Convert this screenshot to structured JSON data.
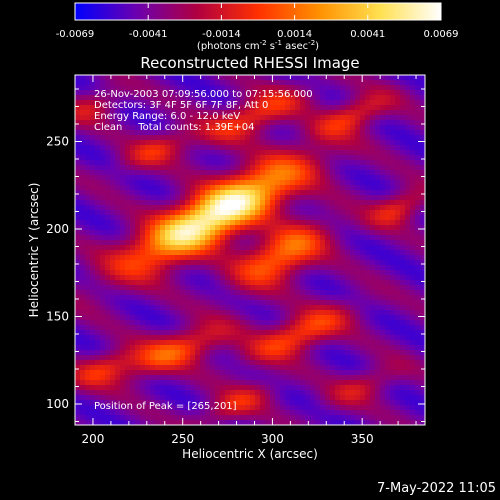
{
  "chart_data": {
    "type": "heatmap",
    "title": "Reconstructed RHESSI Image",
    "xlabel": "Heliocentric X (arcsec)",
    "ylabel": "Heliocentric Y (arcsec)",
    "xlim": [
      190,
      385
    ],
    "ylim": [
      88,
      288
    ],
    "xticks": [
      200,
      250,
      300,
      350
    ],
    "yticks": [
      100,
      150,
      200,
      250
    ],
    "colorbar": {
      "min": -0.0069,
      "max": 0.0069,
      "tick_labels": [
        "-0.0069",
        "-0.0041",
        "-0.0014",
        "0.0014",
        "0.0041",
        "0.0069"
      ],
      "unit_parts": [
        "(photons cm",
        "-2",
        " s",
        "-1",
        " asec",
        "-2",
        ")"
      ],
      "colormap": [
        "#0000ff",
        "#6a00b0",
        "#b00040",
        "#ff3000",
        "#ff9000",
        "#ffe050",
        "#ffffff"
      ]
    },
    "annotations": [
      "26-Nov-2003 07:09:56.000 to 07:15:56.000",
      "Detectors: 3F 4F 5F 6F 7F 8F, Att 0",
      "Energy Range: 6.0 - 12.0 keV",
      "Clean     Total counts: 1.39E+04"
    ],
    "peak_label": "Position of Peak = [265,201]",
    "peak": [
      265,
      201
    ],
    "footer_date": "7-May-2022 11:05",
    "sources": [
      {
        "x": 268,
        "y": 208,
        "sx": 38,
        "sy": 10,
        "angle": -30,
        "amp": 1.0
      },
      {
        "x": 305,
        "y": 185,
        "sx": 20,
        "sy": 9,
        "angle": -30,
        "amp": 0.55
      },
      {
        "x": 245,
        "y": 130,
        "sx": 22,
        "sy": 7,
        "angle": -22,
        "amp": 0.45
      },
      {
        "x": 315,
        "y": 140,
        "sx": 22,
        "sy": 7,
        "angle": -25,
        "amp": 0.45
      },
      {
        "x": 290,
        "y": 265,
        "sx": 22,
        "sy": 7,
        "angle": -25,
        "amp": 0.4
      },
      {
        "x": 345,
        "y": 265,
        "sx": 16,
        "sy": 6,
        "angle": -25,
        "amp": 0.35
      },
      {
        "x": 235,
        "y": 245,
        "sx": 16,
        "sy": 6,
        "angle": -25,
        "amp": 0.3
      },
      {
        "x": 370,
        "y": 212,
        "sx": 12,
        "sy": 6,
        "angle": -25,
        "amp": 0.35
      },
      {
        "x": 205,
        "y": 120,
        "sx": 14,
        "sy": 6,
        "angle": -25,
        "amp": 0.3
      },
      {
        "x": 280,
        "y": 100,
        "sx": 16,
        "sy": 6,
        "angle": -25,
        "amp": 0.3
      },
      {
        "x": 350,
        "y": 110,
        "sx": 16,
        "sy": 6,
        "angle": -25,
        "amp": 0.25
      },
      {
        "x": 200,
        "y": 270,
        "sx": 12,
        "sy": 6,
        "angle": -25,
        "amp": 0.25
      }
    ]
  }
}
